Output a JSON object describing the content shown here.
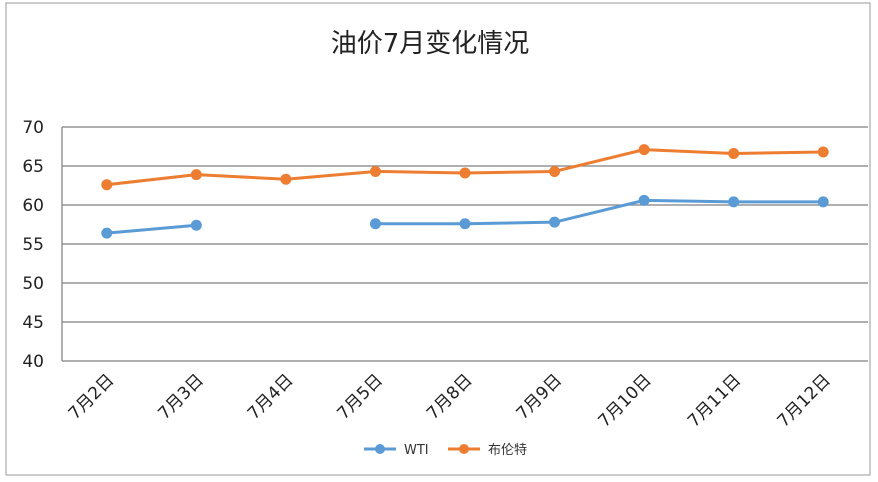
{
  "chart_data": {
    "type": "line",
    "title": "油价7月变化情况",
    "xlabel": "",
    "ylabel": "",
    "categories": [
      "7月2日",
      "7月3日",
      "7月4日",
      "7月5日",
      "7月8日",
      "7月9日",
      "7月10日",
      "7月11日",
      "7月12日"
    ],
    "ylim": [
      40,
      70
    ],
    "yticks": [
      "40",
      "45",
      "50",
      "55",
      "60",
      "65",
      "70"
    ],
    "grid": "horizontal",
    "legend_position": "bottom",
    "series": [
      {
        "name": "WTI",
        "color": "#5B9BD5",
        "values": [
          56.4,
          57.4,
          null,
          57.6,
          57.6,
          57.8,
          60.6,
          60.4,
          60.4
        ]
      },
      {
        "name": "布伦特",
        "color": "#ED7D31",
        "values": [
          62.6,
          63.9,
          63.3,
          64.3,
          64.1,
          64.3,
          67.1,
          66.6,
          66.8
        ]
      }
    ]
  }
}
